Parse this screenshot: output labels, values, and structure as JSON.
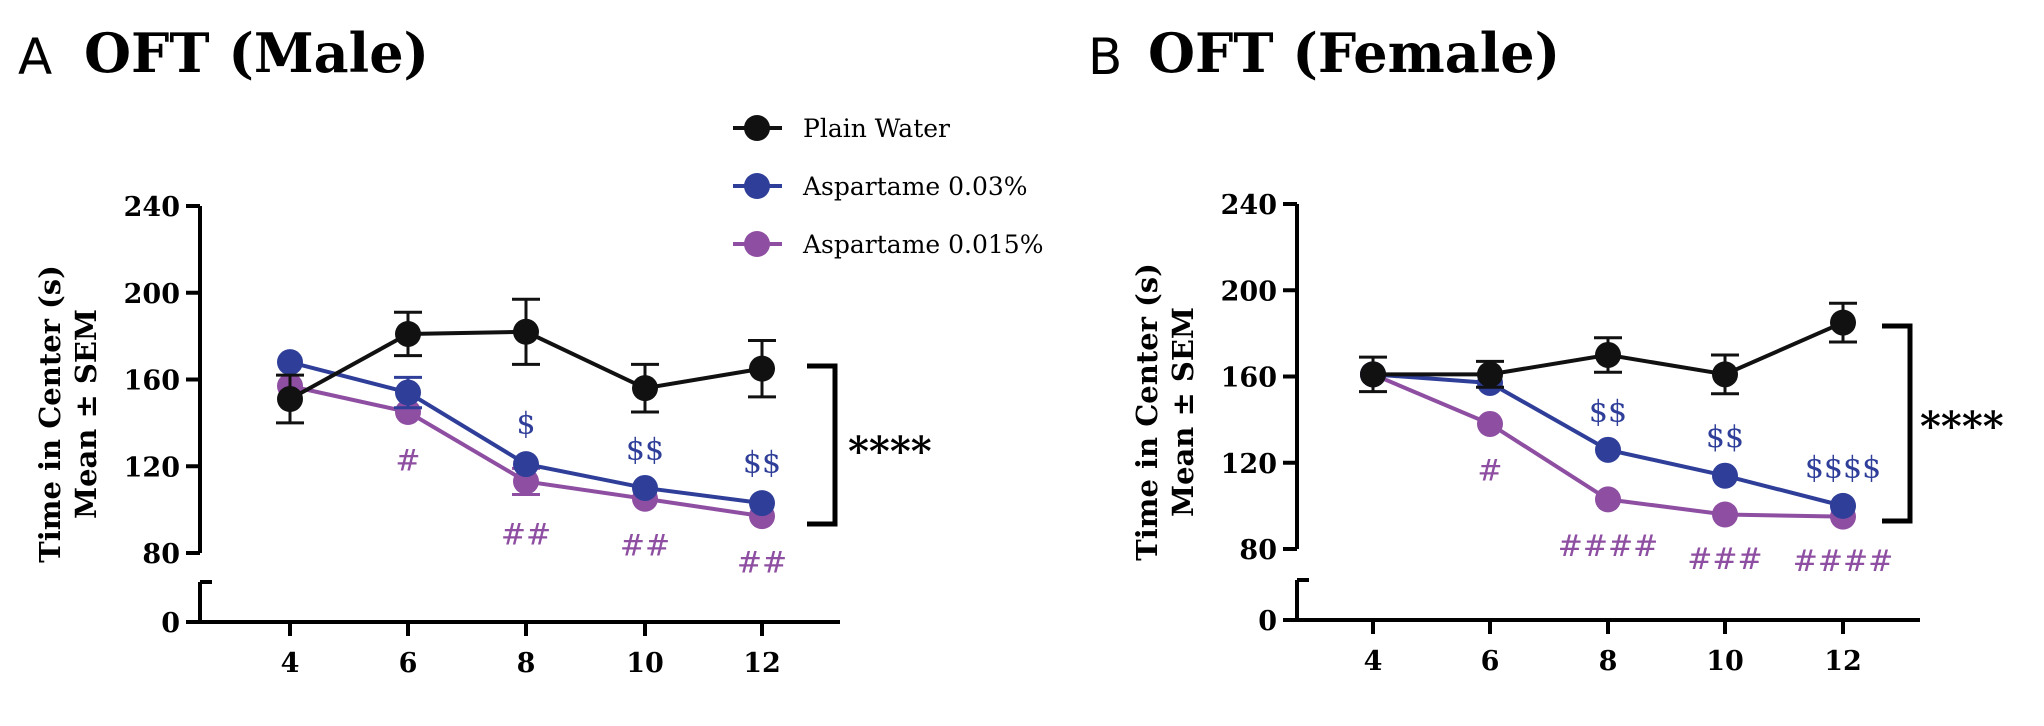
{
  "legend": [
    {
      "name": "Plain Water",
      "color": "#111111"
    },
    {
      "name": "Aspartame 0.03%",
      "color": "#2f3f99"
    },
    {
      "name": "Aspartame 0.015%",
      "color": "#8e4fa2"
    }
  ],
  "chart_data": [
    {
      "type": "line",
      "panel": "A",
      "title": "OFT (Male)",
      "ylabel_line1": "Time in Center (s)",
      "ylabel_line2": "Mean ± SEM",
      "xlabel": "",
      "x": [
        4,
        6,
        8,
        10,
        12
      ],
      "x_ticks": [
        "4",
        "6",
        "8",
        "10",
        "12"
      ],
      "y_ticks": [
        "80",
        "120",
        "160",
        "200",
        "240"
      ],
      "y_break_tick": "0",
      "ylim": [
        80,
        240
      ],
      "series": [
        {
          "name": "Plain Water",
          "color": "#111111",
          "values": [
            151,
            181,
            182,
            156,
            165
          ],
          "sem": [
            11,
            10,
            15,
            11,
            13
          ]
        },
        {
          "name": "Aspartame 0.03%",
          "color": "#2f3f99",
          "values": [
            168,
            154,
            121,
            110,
            103
          ],
          "sem": [
            3,
            7,
            4,
            3,
            4
          ]
        },
        {
          "name": "Aspartame 0.015%",
          "color": "#8e4fa2",
          "values": [
            157,
            145,
            113,
            105,
            97
          ],
          "sem": [
            3,
            4,
            6,
            3,
            3
          ]
        }
      ],
      "annotations_dollar": [
        "",
        "",
        "$",
        "$$",
        "$$"
      ],
      "annotations_hash": [
        "",
        "#",
        "##",
        "##",
        "##"
      ],
      "significance": "****"
    },
    {
      "type": "line",
      "panel": "B",
      "title": "OFT (Female)",
      "ylabel_line1": "Time in Center (s)",
      "ylabel_line2": "Mean ± SEM",
      "xlabel": "",
      "x": [
        4,
        6,
        8,
        10,
        12
      ],
      "x_ticks": [
        "4",
        "6",
        "8",
        "10",
        "12"
      ],
      "y_ticks": [
        "80",
        "120",
        "160",
        "200",
        "240"
      ],
      "y_break_tick": "0",
      "ylim": [
        80,
        240
      ],
      "series": [
        {
          "name": "Plain Water",
          "color": "#111111",
          "values": [
            161,
            161,
            170,
            161,
            185
          ],
          "sem": [
            8,
            6,
            8,
            9,
            9
          ]
        },
        {
          "name": "Aspartame 0.03%",
          "color": "#2f3f99",
          "values": [
            161,
            157,
            126,
            114,
            100
          ],
          "sem": [
            3,
            4,
            3,
            3,
            3
          ]
        },
        {
          "name": "Aspartame 0.015%",
          "color": "#8e4fa2",
          "values": [
            161,
            138,
            103,
            96,
            95
          ],
          "sem": [
            3,
            3,
            3,
            2,
            2
          ]
        }
      ],
      "annotations_dollar": [
        "",
        "",
        "$$",
        "$$",
        "$$$$"
      ],
      "annotations_hash": [
        "",
        "#",
        "####",
        "###",
        "####"
      ],
      "significance": "****"
    }
  ]
}
